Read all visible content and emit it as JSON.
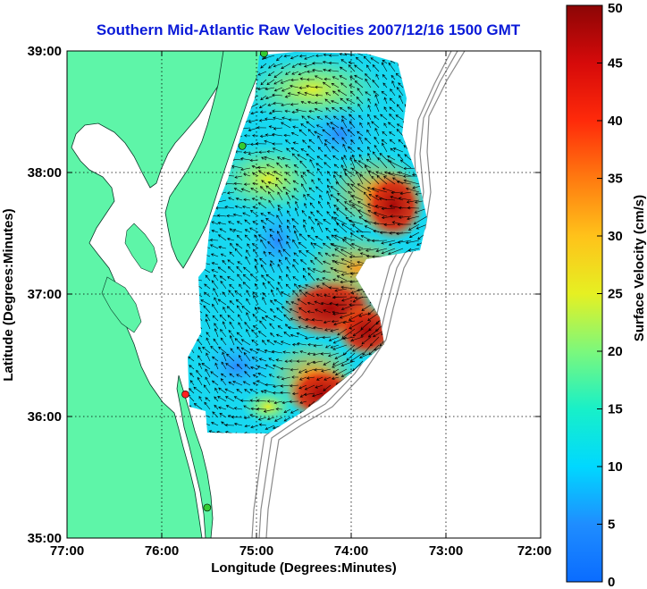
{
  "title": "Southern Mid-Atlantic Raw Velocities 2007/12/16 1500 GMT",
  "map": {
    "xlabel": "Longitude (Degrees:Minutes)",
    "ylabel": "Latitude (Degrees:Minutes)",
    "x_ticks": [
      "77:00",
      "76:00",
      "75:00",
      "74:00",
      "73:00",
      "72:00"
    ],
    "y_ticks": [
      "39:00",
      "38:00",
      "37:00",
      "36:00",
      "35:00"
    ],
    "lon_range": [
      -77,
      -72
    ],
    "lat_range": [
      35,
      39
    ],
    "grid": "dotted",
    "land_color": "#5ef5a8",
    "water_color": "#ffffff",
    "stations": [
      {
        "lon": -74.92,
        "lat": 38.98,
        "color": "#33cc33"
      },
      {
        "lon": -75.15,
        "lat": 38.22,
        "color": "#33cc33"
      },
      {
        "lon": -75.75,
        "lat": 36.18,
        "color": "#ff2020"
      },
      {
        "lon": -75.52,
        "lat": 35.25,
        "color": "#33cc33"
      }
    ]
  },
  "colorbar": {
    "label": "Surface Velocity (cm/s)",
    "min": 0,
    "max": 50,
    "ticks": [
      "0",
      "5",
      "10",
      "15",
      "20",
      "25",
      "30",
      "35",
      "40",
      "45",
      "50"
    ]
  }
}
